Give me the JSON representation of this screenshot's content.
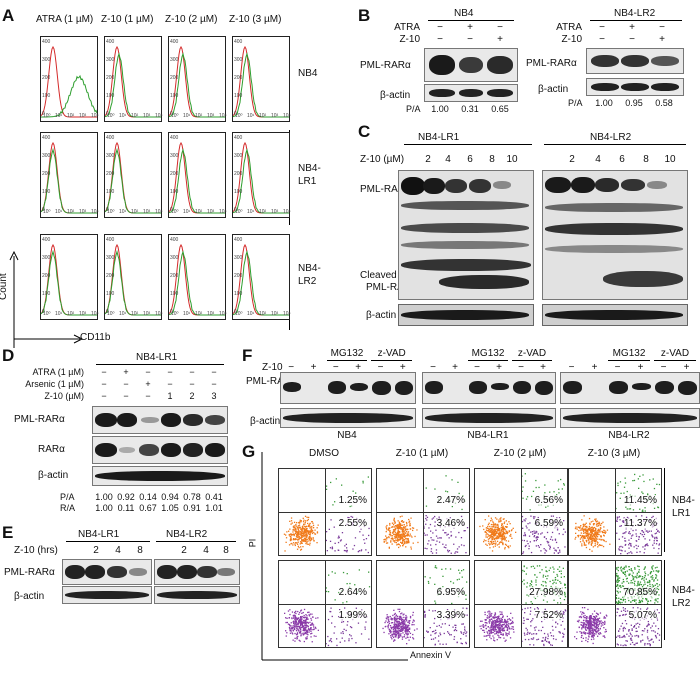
{
  "panels": {
    "A": "A",
    "B": "B",
    "C": "C",
    "D": "D",
    "E": "E",
    "F": "F",
    "G": "G"
  },
  "panelA": {
    "col_headers": [
      "ATRA (1 µM)",
      "Z-10 (1 µM)",
      "Z-10 (2 µM)",
      "Z-10 (3 µM)"
    ],
    "row_labels": [
      "NB4",
      "NB4-\nLR1",
      "NB4-\nLR2"
    ],
    "row_label_lines": [
      [
        "NB4"
      ],
      [
        "NB4-",
        "LR1"
      ],
      [
        "NB4-",
        "LR2"
      ]
    ],
    "ylabel": "Count",
    "xlabel": "CD11b",
    "y_ticks": [
      "400",
      "300",
      "200",
      "100",
      "0"
    ],
    "x_ticks": [
      "10⁰",
      "10¹",
      "10²",
      "10³",
      "10⁴"
    ],
    "colors": {
      "control": "#d42a2a",
      "treated": "#2e9e2e"
    }
  },
  "panelB": {
    "blot1": {
      "title": "NB4",
      "treat_rows": [
        "ATRA",
        "Z-10"
      ],
      "signs": [
        [
          "−",
          "+",
          "−"
        ],
        [
          "−",
          "−",
          "+"
        ]
      ],
      "proteins": [
        "PML-RARα",
        "β-actin"
      ],
      "ratio_label": "P/A",
      "ratios": [
        "1.00",
        "0.31",
        "0.65"
      ]
    },
    "blot2": {
      "title": "NB4-LR2",
      "treat_rows": [
        "ATRA",
        "Z-10"
      ],
      "signs": [
        [
          "−",
          "+",
          "−"
        ],
        [
          "−",
          "−",
          "+"
        ]
      ],
      "proteins": [
        "PML-RARα",
        "β-actin"
      ],
      "ratio_label": "P/A",
      "ratios": [
        "1.00",
        "0.95",
        "0.58"
      ]
    }
  },
  "panelC": {
    "cell_lines": [
      "NB4-LR1",
      "NB4-LR2"
    ],
    "dose_label": "Z-10 (µM)",
    "doses": [
      "2",
      "4",
      "6",
      "8",
      "10"
    ],
    "proteins": [
      "PML-RARα",
      "Cleaved",
      "PML-RARα",
      "β-actin"
    ]
  },
  "panelD": {
    "title": "NB4-LR1",
    "treat_rows": [
      "ATRA (1 µM)",
      "Arsenic (1 µM)",
      "Z-10 (µM)"
    ],
    "signs": [
      [
        "−",
        "+",
        "−",
        "−",
        "−",
        "−"
      ],
      [
        "−",
        "−",
        "+",
        "−",
        "−",
        "−"
      ],
      [
        "−",
        "−",
        "−",
        "1",
        "2",
        "3"
      ]
    ],
    "proteins": [
      "PML-RARα",
      "RARα",
      "β-actin"
    ],
    "ratio_labels": [
      "P/A",
      "R/A"
    ],
    "pa": [
      "1.00",
      "0.92",
      "0.14",
      "0.94",
      "0.78",
      "0.41"
    ],
    "ra": [
      "1.00",
      "0.11",
      "0.67",
      "1.05",
      "0.91",
      "1.01"
    ]
  },
  "panelE": {
    "cell_lines": [
      "NB4-LR1",
      "NB4-LR2"
    ],
    "time_label": "Z-10 (hrs)",
    "times": [
      "2",
      "4",
      "8"
    ],
    "proteins": [
      "PML-RARα",
      "β-actin"
    ]
  },
  "panelF": {
    "z10_label": "Z-10",
    "inhibitors": [
      "MG132",
      "z-VAD"
    ],
    "signs": [
      "−",
      "+",
      "−",
      "+",
      "−",
      "+"
    ],
    "proteins": [
      "PML-RARα",
      "β-actin"
    ],
    "cell_lines": [
      "NB4",
      "NB4-LR1",
      "NB4-LR2"
    ]
  },
  "panelG": {
    "col_headers": [
      "DMSO",
      "Z-10 (1 µM)",
      "Z-10 (2 µM)",
      "Z-10 (3 µM)"
    ],
    "row_labels": [
      [
        "NB4-",
        "LR1"
      ],
      [
        "NB4-",
        "LR2"
      ]
    ],
    "ylabel": "PI",
    "xlabel": "Annexin V",
    "upper_pct": [
      [
        "1.25%",
        "2.47%",
        "6.56%",
        "11.45%"
      ],
      [
        "2.64%",
        "6.95%",
        "27.98%",
        "70.85%"
      ]
    ],
    "lower_pct": [
      [
        "2.55%",
        "3.46%",
        "6.59%",
        "11.37%"
      ],
      [
        "1.99%",
        "3.39%",
        "7.52%",
        "5.07%"
      ]
    ],
    "colors": {
      "live_LR1": "#f07a1a",
      "live_LR2": "#8a3aa8",
      "early": "#7a3a9a",
      "late": "#3a9a3a"
    }
  }
}
